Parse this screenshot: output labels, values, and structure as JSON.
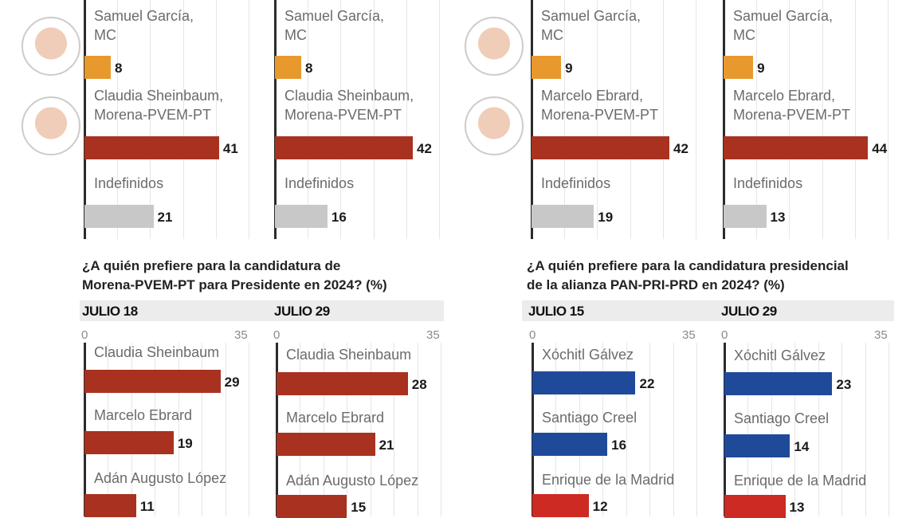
{
  "colors": {
    "mc": "#e8992e",
    "morena": "#a8321f",
    "undecided": "#c8c8c8",
    "pan": "#1f4a9a",
    "pri": "#cc2a22"
  },
  "photos": [
    "Samuel García",
    "Claudia Sheinbaum",
    "Samuel García",
    "Marcelo Ebrard"
  ],
  "questions": {
    "morena": "¿A quién prefiere para la candidatura de\nMorena-PVEM-PT para Presidente en 2024? (%)",
    "alianza": "¿A quién prefiere para la candidatura presidencial\nde la alianza PAN-PRI-PRD en 2024? (%)"
  },
  "chart_data": [
    {
      "type": "bar",
      "orientation": "horizontal",
      "xlim": [
        0,
        50
      ],
      "grid": true,
      "categories": [
        "Samuel García,\nMC",
        "Claudia Sheinbaum,\nMorena-PVEM-PT",
        "Indefinidos"
      ],
      "values": [
        8,
        41,
        21
      ],
      "colors": [
        "#e8992e",
        "#a8321f",
        "#c8c8c8"
      ]
    },
    {
      "type": "bar",
      "orientation": "horizontal",
      "xlim": [
        0,
        50
      ],
      "grid": true,
      "categories": [
        "Samuel García,\nMC",
        "Claudia Sheinbaum,\nMorena-PVEM-PT",
        "Indefinidos"
      ],
      "values": [
        8,
        42,
        16
      ],
      "colors": [
        "#e8992e",
        "#a8321f",
        "#c8c8c8"
      ]
    },
    {
      "type": "bar",
      "orientation": "horizontal",
      "xlim": [
        0,
        50
      ],
      "grid": true,
      "categories": [
        "Samuel García,\nMC",
        "Marcelo Ebrard,\nMorena-PVEM-PT",
        "Indefinidos"
      ],
      "values": [
        9,
        42,
        19
      ],
      "colors": [
        "#e8992e",
        "#a8321f",
        "#c8c8c8"
      ]
    },
    {
      "type": "bar",
      "orientation": "horizontal",
      "xlim": [
        0,
        50
      ],
      "grid": true,
      "categories": [
        "Samuel García,\nMC",
        "Marcelo Ebrard,\nMorena-PVEM-PT",
        "Indefinidos"
      ],
      "values": [
        9,
        44,
        13
      ],
      "colors": [
        "#e8992e",
        "#a8321f",
        "#c8c8c8"
      ]
    },
    {
      "type": "bar",
      "orientation": "horizontal",
      "title": "JULIO 18",
      "xlim": [
        0,
        35
      ],
      "xticks": [
        "0",
        "35"
      ],
      "grid": true,
      "categories": [
        "Claudia Sheinbaum",
        "Marcelo Ebrard",
        "Adán Augusto López"
      ],
      "values": [
        29,
        19,
        11
      ],
      "colors": [
        "#a8321f",
        "#a8321f",
        "#a8321f"
      ]
    },
    {
      "type": "bar",
      "orientation": "horizontal",
      "title": "JULIO 29",
      "xlim": [
        0,
        35
      ],
      "xticks": [
        "0",
        "35"
      ],
      "grid": true,
      "categories": [
        "Claudia Sheinbaum",
        "Marcelo Ebrard",
        "Adán Augusto López"
      ],
      "values": [
        28,
        21,
        15
      ],
      "colors": [
        "#a8321f",
        "#a8321f",
        "#a8321f"
      ]
    },
    {
      "type": "bar",
      "orientation": "horizontal",
      "title": "JULIO 15",
      "xlim": [
        0,
        35
      ],
      "xticks": [
        "0",
        "35"
      ],
      "grid": true,
      "categories": [
        "Xóchitl Gálvez",
        "Santiago Creel",
        "Enrique de la Madrid"
      ],
      "values": [
        22,
        16,
        12
      ],
      "colors": [
        "#1f4a9a",
        "#1f4a9a",
        "#cc2a22"
      ]
    },
    {
      "type": "bar",
      "orientation": "horizontal",
      "title": "JULIO 29",
      "xlim": [
        0,
        35
      ],
      "xticks": [
        "0",
        "35"
      ],
      "grid": true,
      "categories": [
        "Xóchitl Gálvez",
        "Santiago Creel",
        "Enrique de la Madrid"
      ],
      "values": [
        23,
        14,
        13
      ],
      "colors": [
        "#1f4a9a",
        "#1f4a9a",
        "#cc2a22"
      ]
    }
  ]
}
